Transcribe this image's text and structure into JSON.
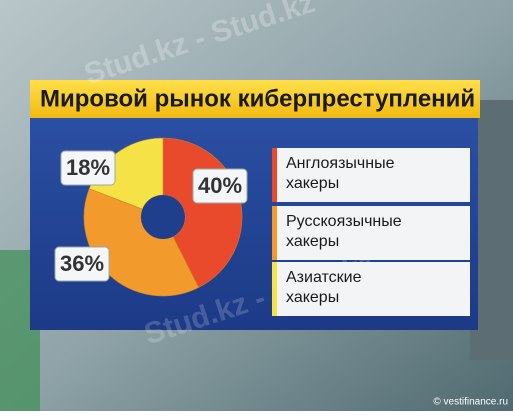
{
  "chart_data": {
    "type": "pie",
    "title": "Мировой рынок киберпреступлений",
    "categories": [
      "Англоязычные хакеры",
      "Русскоязычные хакеры",
      "Азиатские хакеры"
    ],
    "values": [
      40,
      36,
      18
    ],
    "value_labels": [
      "40%",
      "36%",
      "18%"
    ],
    "colors": [
      "#ea4a2c",
      "#f39a2c",
      "#f4e246"
    ]
  },
  "watermark": "Stud.kz - Stud.kz",
  "credit": "© vestifinance.ru"
}
